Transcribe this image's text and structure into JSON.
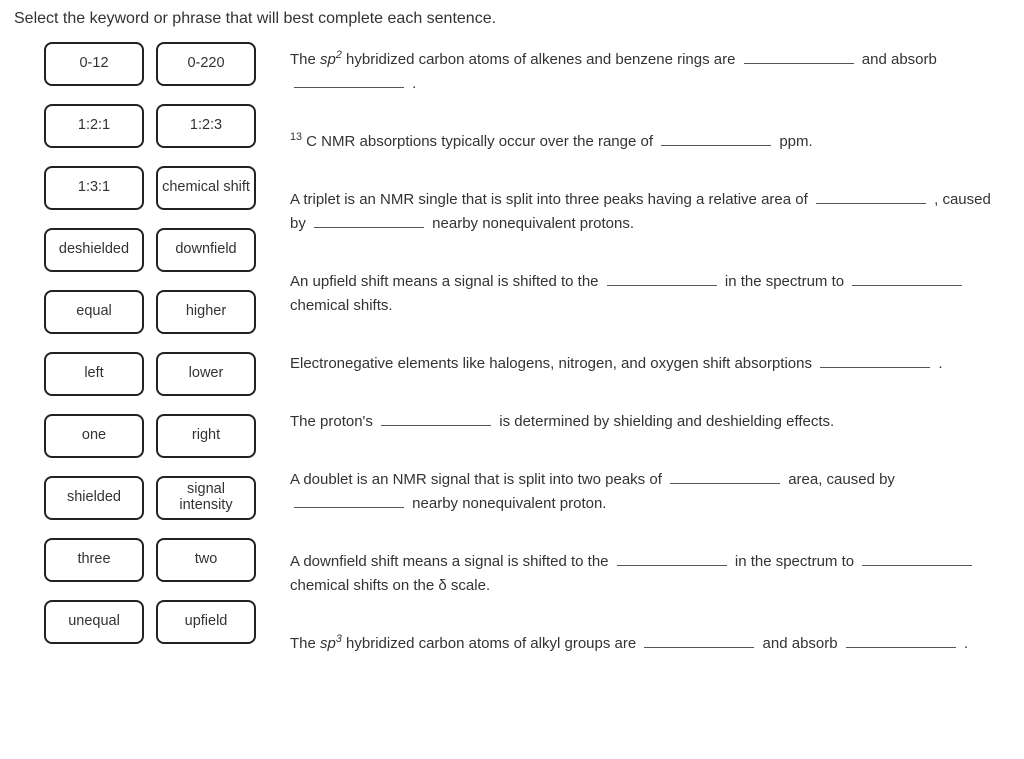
{
  "instruction": "Select the keyword or phrase that will best complete each sentence.",
  "options": [
    "0-12",
    "0-220",
    "1:2:1",
    "1:2:3",
    "1:3:1",
    "chemical shift",
    "deshielded",
    "downfield",
    "equal",
    "higher",
    "left",
    "lower",
    "one",
    "right",
    "shielded",
    "signal intensity",
    "three",
    "two",
    "unequal",
    "upfield"
  ],
  "questions": {
    "q1a": "The ",
    "q1b": " hybridized carbon atoms of alkenes and benzene rings are ",
    "q1c": " and absorb ",
    "q1d": " .",
    "q2a": " C NMR absorptions typically occur over the range of ",
    "q2b": " ppm.",
    "q3a": "A triplet is an NMR single that is split into three peaks having a relative area of ",
    "q3b": " , caused by ",
    "q3c": " nearby nonequivalent protons.",
    "q4a": "An upfield shift means a signal is shifted to the ",
    "q4b": " in the spectrum to ",
    "q4c": " chemical shifts.",
    "q5a": "Electronegative elements like halogens, nitrogen, and oxygen shift absorptions ",
    "q5b": " .",
    "q6a": "The proton's ",
    "q6b": " is determined by shielding and deshielding effects.",
    "q7a": "A doublet is an NMR signal that is split into two peaks of ",
    "q7b": " area, caused by ",
    "q7c": " nearby nonequivalent proton.",
    "q8a": "A downfield shift means a signal is shifted to the ",
    "q8b": " in the spectrum to ",
    "q8c": " chemical shifts on the δ scale.",
    "q9a": "The ",
    "q9b": " hybridized carbon atoms of alkyl groups are ",
    "q9c": " and absorb ",
    "q9d": " .",
    "sp2": "sp",
    "sp3": "sp",
    "sup2": "2",
    "sup3": "3",
    "sup13": "13"
  }
}
